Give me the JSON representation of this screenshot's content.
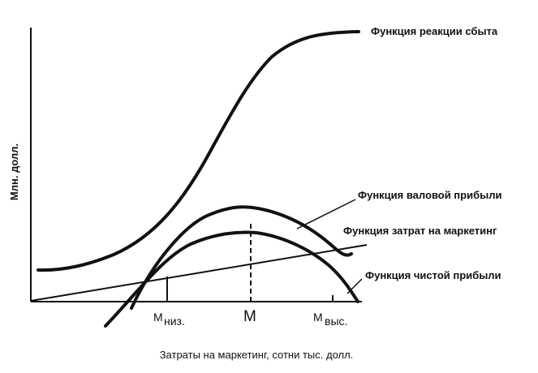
{
  "chart": {
    "ylabel": "Млн. долл.",
    "xlabel": "Затраты на маркетинг, сотни тыс. долл.",
    "labels": {
      "sales_response": "Функция реакции сбыта",
      "gross_profit": "Функция валовой прибыли",
      "marketing_cost": "Функция затрат на маркетинг",
      "net_profit": "Функция чистой прибыли"
    },
    "ticks": {
      "m_low_main": "М",
      "m_low_sub": "низ.",
      "m_opt": "М",
      "m_high_main": "М",
      "m_high_sub": "выс."
    }
  },
  "colors": {
    "ink": "#111111",
    "background": "#ffffff"
  }
}
